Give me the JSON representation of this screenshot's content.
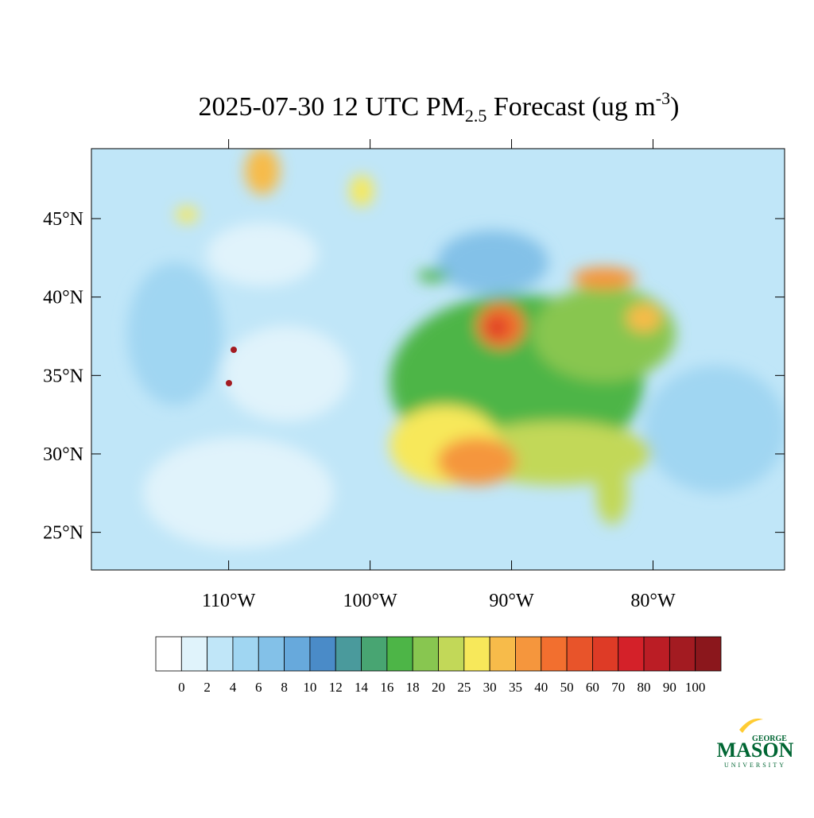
{
  "chart_data": {
    "type": "map",
    "title": {
      "main": "2025-07-30 12 UTC PM",
      "sub": "2.5",
      "rest": " Forecast (ug m",
      "sup": "-3",
      "end": ")"
    },
    "xlim": [
      -119.7,
      -70.7
    ],
    "ylim": [
      22.6,
      49.46
    ],
    "xticks": [
      {
        "value": -110,
        "label": "110°W"
      },
      {
        "value": -100,
        "label": "100°W"
      },
      {
        "value": -90,
        "label": "90°W"
      },
      {
        "value": -80,
        "label": "80°W"
      }
    ],
    "yticks": [
      {
        "value": 25,
        "label": "25°N"
      },
      {
        "value": 30,
        "label": "30°N"
      },
      {
        "value": 35,
        "label": "35°N"
      },
      {
        "value": 40,
        "label": "40°N"
      },
      {
        "value": 45,
        "label": "45°N"
      }
    ],
    "colorbar": {
      "levels": [
        0,
        2,
        4,
        6,
        8,
        10,
        12,
        14,
        16,
        18,
        20,
        25,
        30,
        35,
        40,
        50,
        60,
        70,
        80,
        90,
        100
      ],
      "colors": [
        "#ffffff",
        "#e0f3fb",
        "#c0e6f8",
        "#a0d6f2",
        "#83c1e8",
        "#67a9dc",
        "#4a8bc8",
        "#4a9a9c",
        "#48a572",
        "#4db547",
        "#88c650",
        "#c2d858",
        "#f7e85a",
        "#f7bb4a",
        "#f5963d",
        "#f26f2f",
        "#e8542a",
        "#de3b26",
        "#d42129",
        "#bb1d25",
        "#a31b21",
        "#8b171c"
      ]
    }
  },
  "logo": {
    "top": "GEORGE",
    "main": "MASON",
    "bottom": "UNIVERSITY"
  }
}
